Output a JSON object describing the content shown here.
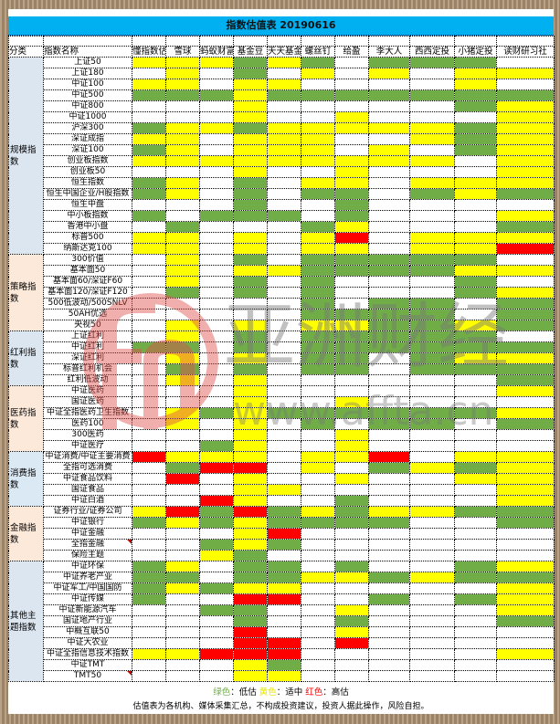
{
  "title": "指数估值表 20190616",
  "headers": [
    "分类",
    "指数名称",
    "懂指数估",
    "雪球",
    "蚂蚁财富",
    "基金豆",
    "天天基金",
    "螺丝钉",
    "给盈",
    "李大人",
    "西西定投",
    "小猪定投",
    "读财研习社"
  ],
  "colors": {
    "G": "#70ad47",
    "Y": "#ffff00",
    "R": "#ff0000",
    "W": "#ffffff",
    "header": "#00b0f0"
  },
  "categories": [
    {
      "label": "规模指数",
      "bg": "#dce6f1",
      "rows": [
        {
          "name": "上证50",
          "cells": "YYYGYGWGGGW"
        },
        {
          "name": "上证180",
          "cells": "WYWGWYWYWYY"
        },
        {
          "name": "中证100",
          "cells": "YYWYYWWWWYW"
        },
        {
          "name": "中证500",
          "cells": "GGGYGGGGGGG"
        },
        {
          "name": "中证800",
          "cells": "WWWYWWWWWGY"
        },
        {
          "name": "中证1000",
          "cells": "WWWYWWYWWWY"
        },
        {
          "name": "沪深300",
          "cells": "GYYGYYYYYGY"
        },
        {
          "name": "深证成指",
          "cells": "YYWYYYWWYGY"
        },
        {
          "name": "深证100",
          "cells": "GYWYYYWYWGY"
        },
        {
          "name": "创业板指数",
          "cells": "YYYYYYYYYWY"
        },
        {
          "name": "创业板50",
          "cells": "WWWYWWYWWWY"
        },
        {
          "name": "恒生指数",
          "cells": "GYWGWYYWYYY"
        },
        {
          "name": "恒生中国企业/H股指数",
          "cells": "GYWGWGGWGYG"
        },
        {
          "name": "恒生中盘",
          "cells": "WWWGWWGWWWW"
        },
        {
          "name": "中小板指数",
          "cells": "GWGGGWGWWWY"
        },
        {
          "name": "香港中小盘",
          "cells": "WGWWWGYWWWG"
        },
        {
          "name": "标普500",
          "cells": "YYWYWYRWYYY"
        },
        {
          "name": "纳斯达克100",
          "cells": "YYWYWYYWYYR"
        }
      ]
    },
    {
      "label": "策略指数",
      "bg": "#fde9d9",
      "rows": [
        {
          "name": "300价值",
          "cells": "WYWGWGGGGGW"
        },
        {
          "name": "基本面50",
          "cells": "WYWYYGGGGYY"
        },
        {
          "name": "基本面60/深证F60",
          "cells": "WYWGWGWWWGW"
        },
        {
          "name": "基本面120/深证F120",
          "cells": "WGWGWGWWWGY"
        },
        {
          "name": "500低波动/500SNLV",
          "cells": "WWWWWGWGGWG"
        },
        {
          "name": "50AH优选",
          "cells": "WWWWWGGGGWG"
        },
        {
          "name": "央视50",
          "cells": "WYWYWYYGGYG"
        }
      ]
    },
    {
      "label": "红利指数",
      "bg": "#dce6f1",
      "rows": [
        {
          "name": "上证红利",
          "cells": "WYWGWGGGGGW"
        },
        {
          "name": "中证红利",
          "cells": "GGWGWGGGGGG"
        },
        {
          "name": "深证红利",
          "cells": "WYWYWGGWGYY"
        },
        {
          "name": "标普红利机会",
          "cells": "WGWGWGGWGGG"
        },
        {
          "name": "红利低波动",
          "cells": "WYWYWWWWWWG"
        }
      ]
    },
    {
      "label": "医药指数",
      "bg": "#fde9d9",
      "rows": [
        {
          "name": "中证医药",
          "cells": "WWWYWWWWWWY"
        },
        {
          "name": "国证医药",
          "cells": "WWWYWWYWWWW"
        },
        {
          "name": "中证全指医药卫生指数",
          "cells": "WYGYGGGGGGY"
        },
        {
          "name": "医药100",
          "cells": "WYWYWGWGGWG"
        },
        {
          "name": "300医药",
          "cells": "WWWYWWYWWWW"
        },
        {
          "name": "中证医疗",
          "cells": "WWGYWWYWWWW"
        }
      ]
    },
    {
      "label": "消费指数",
      "bg": "#dbe9f5",
      "rows": [
        {
          "name": "中证消费/中证主要消费",
          "cells": "RYYYWYYRWYY"
        },
        {
          "name": "全指可选消费",
          "cells": "WGRRWYWGYGY"
        },
        {
          "name": "中证食品饮料",
          "cells": "WRWYWWYWWYY"
        },
        {
          "name": "国证食品",
          "cells": "WWWYYWWWWWY"
        },
        {
          "name": "中证白酒",
          "cells": "WWRYWWGWWWY"
        }
      ]
    },
    {
      "label": "金融指数",
      "bg": "#fde9d9",
      "rows": [
        {
          "name": "证券行业/证券公司",
          "cells": "YRGRGYGYYGG"
        },
        {
          "name": "中证银行",
          "cells": "GYGYGGGGWWG"
        },
        {
          "name": "中证金融",
          "cells": "WWWYRWWWWWW"
        },
        {
          "name": "全指金融",
          "cells": "WWGYGWWWWWW",
          "note": true
        },
        {
          "name": "保险主题",
          "cells": "WWYGWWWWWWW"
        }
      ]
    },
    {
      "label": "其他主题指数",
      "bg": "#dce6f1",
      "rows": [
        {
          "name": "中证环保",
          "cells": "GYWGGWGWWGY"
        },
        {
          "name": "中证养老产业",
          "cells": "GGWGGYYGYGG"
        },
        {
          "name": "中证军工/中国国防",
          "cells": "GYGYYWWWWWY"
        },
        {
          "name": "中证传媒",
          "cells": "GWWRRWWGWGY"
        },
        {
          "name": "中证新能源汽车",
          "cells": "WWGGWWYWWWY"
        },
        {
          "name": "国证地产行业",
          "cells": "WWWGWWGWWWG"
        },
        {
          "name": "中概互联50",
          "cells": "WWWRWWYWWWW"
        },
        {
          "name": "中证大农业",
          "cells": "WWWRRWRWWWW"
        },
        {
          "name": "中证全指信息技术指数",
          "cells": "YYRRRWWWWWY"
        },
        {
          "name": "中证TMT",
          "cells": "WWWYGWWWWWW"
        },
        {
          "name": "TMT50",
          "cells": "WWWYYWWWWWW",
          "note": true
        }
      ]
    }
  ],
  "legend": {
    "green": "绿色",
    "green_text": "：低估 ",
    "yellow": "黄色",
    "yellow_text": "：适中 ",
    "red": "红色",
    "red_text": "：高估"
  },
  "disclaimer": "估值表为各机构、媒体采集汇总，不构成投资建议，投资人据此操作，风险自担。",
  "watermark": {
    "cn": "亚洲财经",
    "url": "www.affta.cn",
    "logo": "fi"
  }
}
